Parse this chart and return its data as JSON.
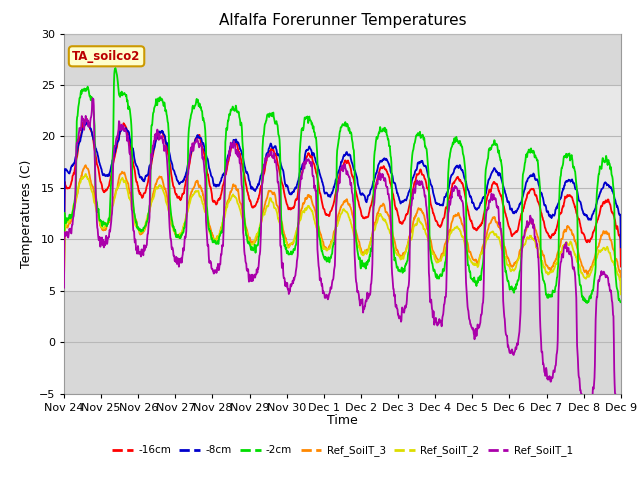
{
  "title": "Alfalfa Forerunner Temperatures",
  "ylabel": "Temperatures (C)",
  "xlabel": "Time",
  "ylim": [
    -5,
    30
  ],
  "annotation_text": "TA_soilco2",
  "background_color": "#ffffff",
  "plot_bg_outer": "#d8d8d8",
  "plot_bg_inner": "#e8e8e8",
  "inner_band_low": 5,
  "inner_band_high": 25,
  "grid_color": "#c8c8c8",
  "series_colors": {
    "-16cm": "#ff0000",
    "-8cm": "#0000cc",
    "-2cm": "#00dd00",
    "Ref_SoilT_3": "#ff8800",
    "Ref_SoilT_2": "#dddd00",
    "Ref_SoilT_1": "#aa00aa"
  },
  "xtick_labels": [
    "Nov 24",
    "Nov 25",
    "Nov 26",
    "Nov 27",
    "Nov 28",
    "Nov 29",
    "Nov 30",
    "Dec 1",
    "Dec 2",
    "Dec 3",
    "Dec 4",
    "Dec 5",
    "Dec 6",
    "Dec 7",
    "Dec 8",
    "Dec 9"
  ],
  "num_days": 15,
  "points_per_day": 96
}
